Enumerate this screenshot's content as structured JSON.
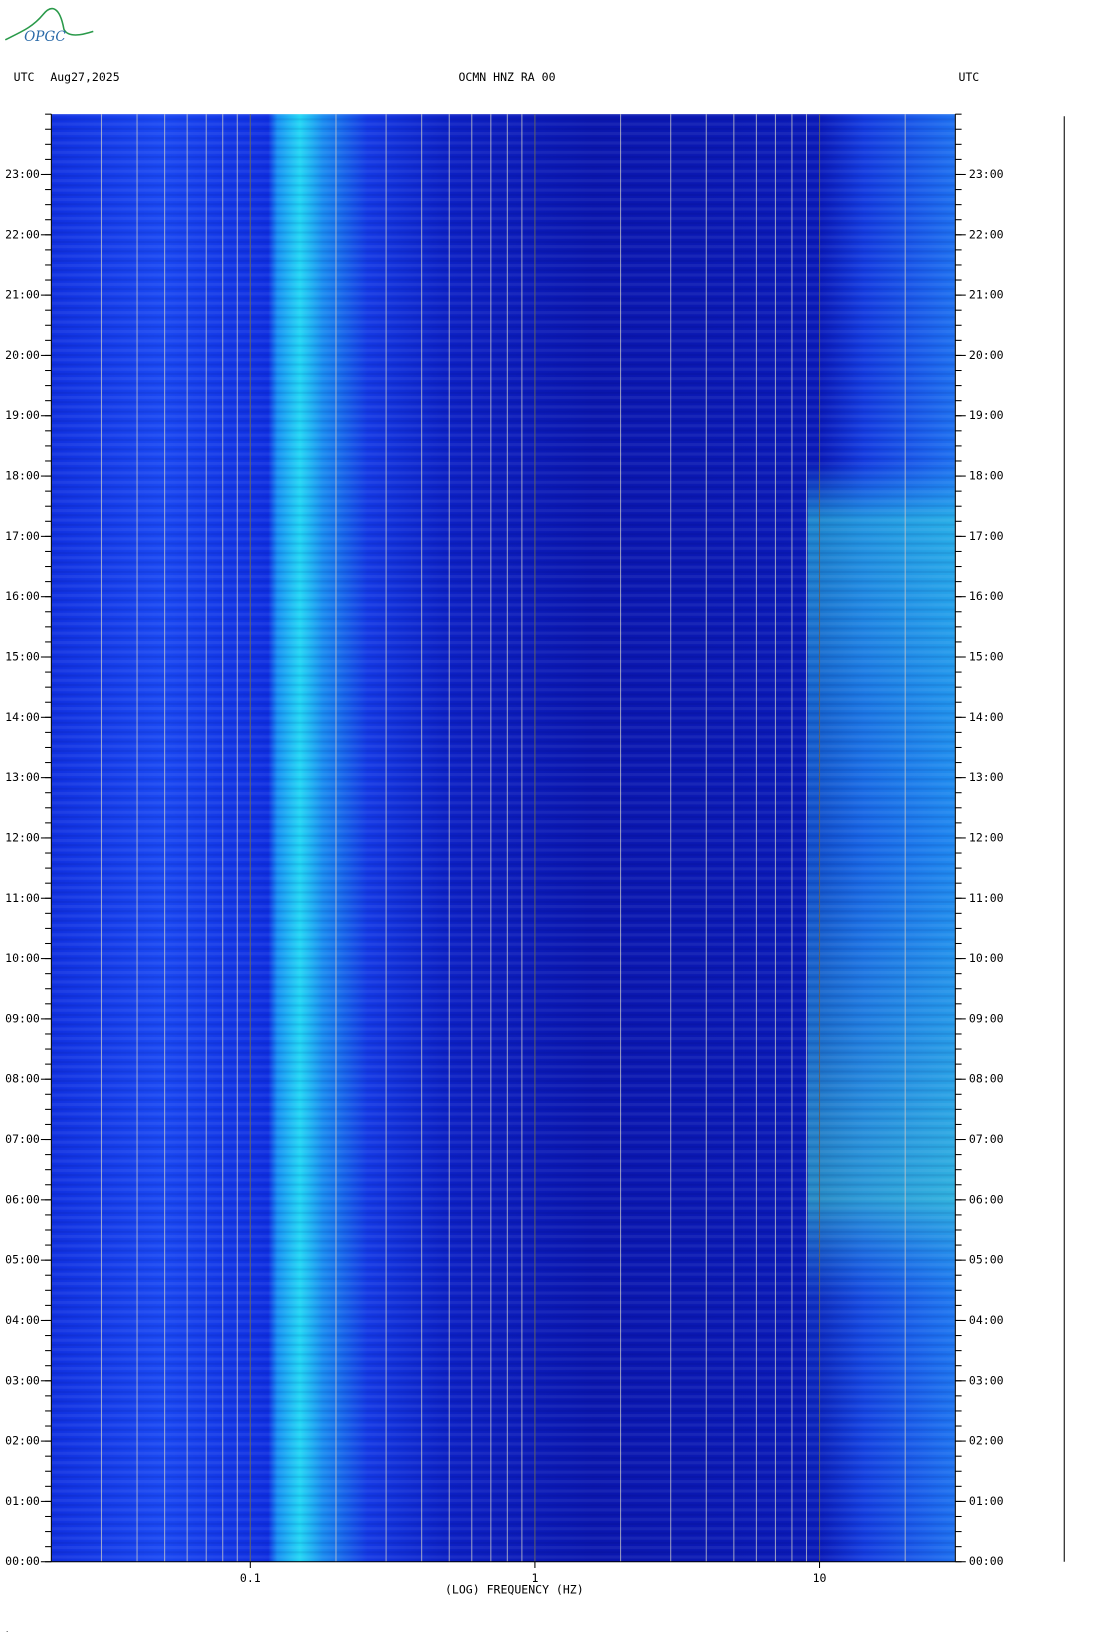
{
  "chart_data": {
    "type": "spectrogram",
    "logo": "OPGC",
    "title": "OCMN HNZ RA 00",
    "date": "Aug27,2025",
    "left_label": "UTC",
    "right_label": "UTC",
    "x_label": "(LOG) FREQUENCY (HZ)",
    "xscale": "log",
    "xlim": [
      0.02,
      30
    ],
    "xticks": [
      0.1,
      1,
      10
    ],
    "xgrid": [
      0.02,
      0.03,
      0.04,
      0.05,
      0.06,
      0.07,
      0.08,
      0.09,
      0.1,
      0.2,
      0.3,
      0.4,
      0.5,
      0.6,
      0.7,
      0.8,
      0.9,
      1,
      2,
      3,
      4,
      5,
      6,
      7,
      8,
      9,
      10,
      20,
      30
    ],
    "ylim": [
      0,
      24
    ],
    "yticks": [
      {
        "value": 0,
        "label": "00:00"
      },
      {
        "value": 1,
        "label": "01:00"
      },
      {
        "value": 2,
        "label": "02:00"
      },
      {
        "value": 3,
        "label": "03:00"
      },
      {
        "value": 4,
        "label": "04:00"
      },
      {
        "value": 5,
        "label": "05:00"
      },
      {
        "value": 6,
        "label": "06:00"
      },
      {
        "value": 7,
        "label": "07:00"
      },
      {
        "value": 8,
        "label": "08:00"
      },
      {
        "value": 9,
        "label": "09:00"
      },
      {
        "value": 10,
        "label": "10:00"
      },
      {
        "value": 11,
        "label": "11:00"
      },
      {
        "value": 12,
        "label": "12:00"
      },
      {
        "value": 13,
        "label": "13:00"
      },
      {
        "value": 14,
        "label": "14:00"
      },
      {
        "value": 15,
        "label": "15:00"
      },
      {
        "value": 16,
        "label": "16:00"
      },
      {
        "value": 17,
        "label": "17:00"
      },
      {
        "value": 18,
        "label": "18:00"
      },
      {
        "value": 19,
        "label": "19:00"
      },
      {
        "value": 20,
        "label": "20:00"
      },
      {
        "value": 21,
        "label": "21:00"
      },
      {
        "value": 22,
        "label": "22:00"
      },
      {
        "value": 23,
        "label": "23:00"
      }
    ]
  }
}
